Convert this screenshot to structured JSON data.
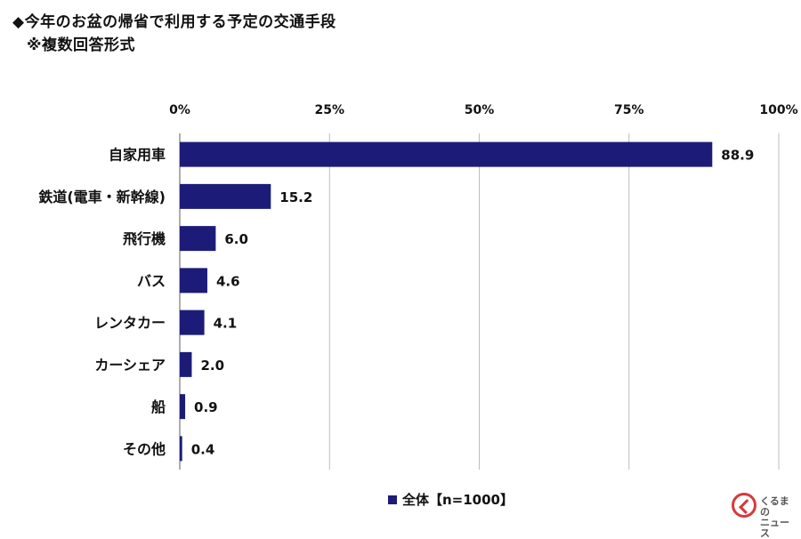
{
  "title": "◆今年のお盆の帰省で利用する予定の交通手段",
  "subtitle": "※複数回答形式",
  "chart_data": {
    "type": "bar",
    "orientation": "horizontal",
    "categories": [
      "自家用車",
      "鉄道(電車・新幹線)",
      "飛行機",
      "バス",
      "レンタカー",
      "カーシェア",
      "船",
      "その他"
    ],
    "series": [
      {
        "name": "全体【n=1000】",
        "values": [
          88.9,
          15.2,
          6.0,
          4.6,
          4.1,
          2.0,
          0.9,
          0.4
        ]
      }
    ],
    "value_labels": [
      "88.9",
      "15.2",
      "6.0",
      "4.6",
      "4.1",
      "2.0",
      "0.9",
      "0.4"
    ],
    "xlim": [
      0,
      100
    ],
    "ticks": [
      "0%",
      "25%",
      "50%",
      "75%",
      "100%"
    ],
    "tick_values": [
      0,
      25,
      50,
      75,
      100
    ],
    "grid": true,
    "legend_position": "bottom",
    "bar_color": "#1c1c78"
  },
  "watermark": {
    "text_line1": "くるまの",
    "text_line2": "ニュース"
  }
}
